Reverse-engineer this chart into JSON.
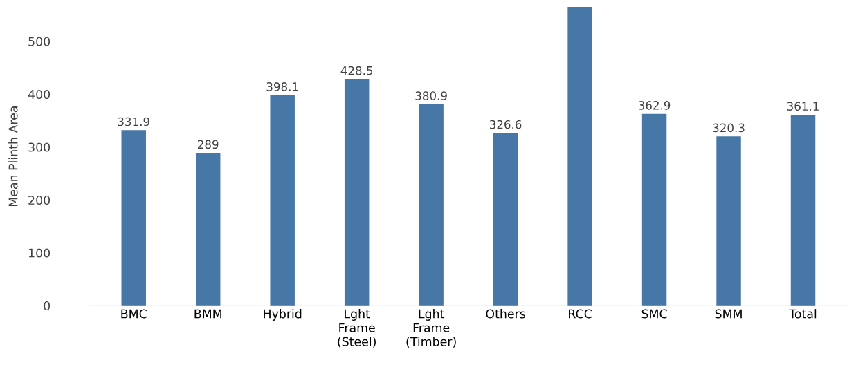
{
  "chart_data": {
    "type": "bar",
    "ylabel": "Mean Plinth Area",
    "categories": [
      "BMC",
      "BMM",
      "Hybrid",
      "Lght\nFrame\n(Steel)",
      "Lght\nFrame\n(Timber)",
      "Others",
      "RCC",
      "SMC",
      "SMM",
      "Total"
    ],
    "values": [
      331.9,
      289,
      398.1,
      428.5,
      380.9,
      326.6,
      565,
      362.9,
      320.3,
      361.1
    ],
    "value_labels": [
      "331.9",
      "289",
      "398.1",
      "428.5",
      "380.9",
      "326.6",
      null,
      "362.9",
      "320.3",
      "361.1"
    ],
    "color": "#4677a7",
    "ylim": [
      0,
      565
    ],
    "yticks": [
      0,
      100,
      200,
      300,
      400,
      500
    ],
    "grid": false,
    "legend": false
  }
}
